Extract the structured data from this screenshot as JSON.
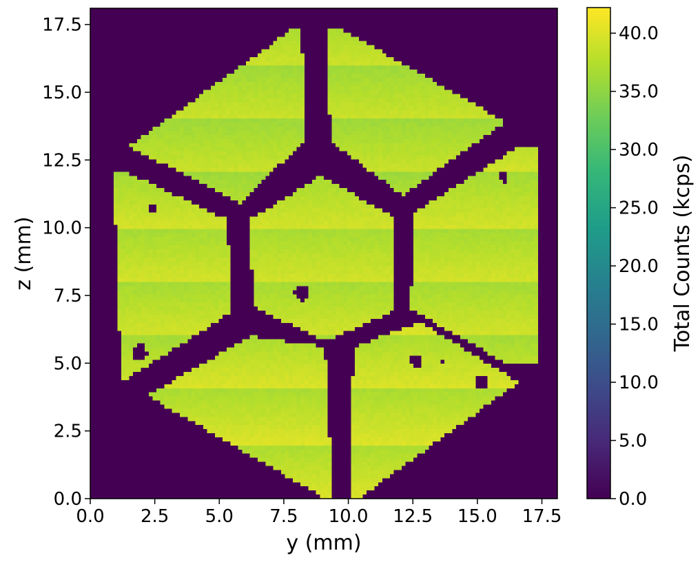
{
  "chart_data": {
    "type": "heatmap",
    "title": "",
    "xlabel": "y (mm)",
    "ylabel": "z (mm)",
    "xlim": [
      0.0,
      18.1
    ],
    "ylim": [
      0.0,
      18.1
    ],
    "xticks": [
      "0.0",
      "2.5",
      "5.0",
      "7.5",
      "10.0",
      "12.5",
      "15.0",
      "17.5"
    ],
    "xtick_values": [
      0.0,
      2.5,
      5.0,
      7.5,
      10.0,
      12.5,
      15.0,
      17.5
    ],
    "yticks": [
      "0.0",
      "2.5",
      "5.0",
      "7.5",
      "10.0",
      "12.5",
      "15.0",
      "17.5"
    ],
    "ytick_values": [
      0.0,
      2.5,
      5.0,
      7.5,
      10.0,
      12.5,
      15.0,
      17.5
    ],
    "colormap": "viridis",
    "colorbar": {
      "label": "Total Counts (kcps)",
      "range": [
        0.0,
        42.2
      ],
      "ticks": [
        "0.0",
        "5.0",
        "10.0",
        "15.0",
        "20.0",
        "25.0",
        "30.0",
        "35.0",
        "40.0"
      ],
      "tick_values": [
        0.0,
        5.0,
        10.0,
        15.0,
        20.0,
        25.0,
        30.0,
        35.0,
        40.0
      ]
    },
    "background_value": 0.0,
    "band_step_mm": 2.0,
    "regions": [
      {
        "name": "top-left",
        "base": 37.5,
        "amp": 3.0,
        "polygon": [
          [
            1.5,
            13.0
          ],
          [
            7.8,
            17.3
          ],
          [
            8.2,
            17.3
          ],
          [
            8.3,
            13.2
          ],
          [
            5.8,
            10.9
          ]
        ]
      },
      {
        "name": "top-right",
        "base": 37.5,
        "amp": 3.0,
        "polygon": [
          [
            9.2,
            17.4
          ],
          [
            9.6,
            17.4
          ],
          [
            16.1,
            13.9
          ],
          [
            12.1,
            11.2
          ],
          [
            9.3,
            13.2
          ]
        ]
      },
      {
        "name": "left",
        "base": 38.0,
        "amp": 3.0,
        "polygon": [
          [
            0.9,
            12.1
          ],
          [
            1.3,
            12.1
          ],
          [
            5.3,
            10.3
          ],
          [
            5.5,
            6.9
          ],
          [
            1.4,
            4.4
          ],
          [
            1.2,
            4.4
          ]
        ]
      },
      {
        "name": "center",
        "base": 38.0,
        "amp": 2.8,
        "polygon": [
          [
            6.2,
            10.3
          ],
          [
            8.9,
            11.9
          ],
          [
            11.8,
            10.4
          ],
          [
            11.7,
            6.9
          ],
          [
            9.1,
            5.8
          ],
          [
            6.3,
            7.1
          ]
        ]
      },
      {
        "name": "right",
        "base": 38.0,
        "amp": 3.0,
        "polygon": [
          [
            12.6,
            10.6
          ],
          [
            16.6,
            13.0
          ],
          [
            17.3,
            13.0
          ],
          [
            17.4,
            5.0
          ],
          [
            16.1,
            5.0
          ],
          [
            12.4,
            7.0
          ]
        ]
      },
      {
        "name": "bottom-left",
        "base": 38.5,
        "amp": 3.2,
        "polygon": [
          [
            2.2,
            3.8
          ],
          [
            6.2,
            6.0
          ],
          [
            9.1,
            5.6
          ],
          [
            9.4,
            0.0
          ],
          [
            9.1,
            0.0
          ]
        ]
      },
      {
        "name": "bottom-right",
        "base": 38.5,
        "amp": 3.2,
        "polygon": [
          [
            10.2,
            5.6
          ],
          [
            12.8,
            6.5
          ],
          [
            16.6,
            4.3
          ],
          [
            10.4,
            0.0
          ],
          [
            10.1,
            0.0
          ]
        ]
      }
    ],
    "holes": [
      {
        "y": 2.4,
        "z": 10.7,
        "r": 0.15
      },
      {
        "y": 1.9,
        "z": 5.4,
        "r": 0.3
      },
      {
        "y": 8.2,
        "z": 7.6,
        "r": 0.3
      },
      {
        "y": 16.0,
        "z": 11.9,
        "r": 0.22
      },
      {
        "y": 12.6,
        "z": 5.1,
        "r": 0.25
      },
      {
        "y": 15.2,
        "z": 4.3,
        "r": 0.25
      },
      {
        "y": 13.7,
        "z": 5.0,
        "r": 0.08
      },
      {
        "y": 15.0,
        "z": 12.7,
        "r": 0.08
      }
    ]
  }
}
